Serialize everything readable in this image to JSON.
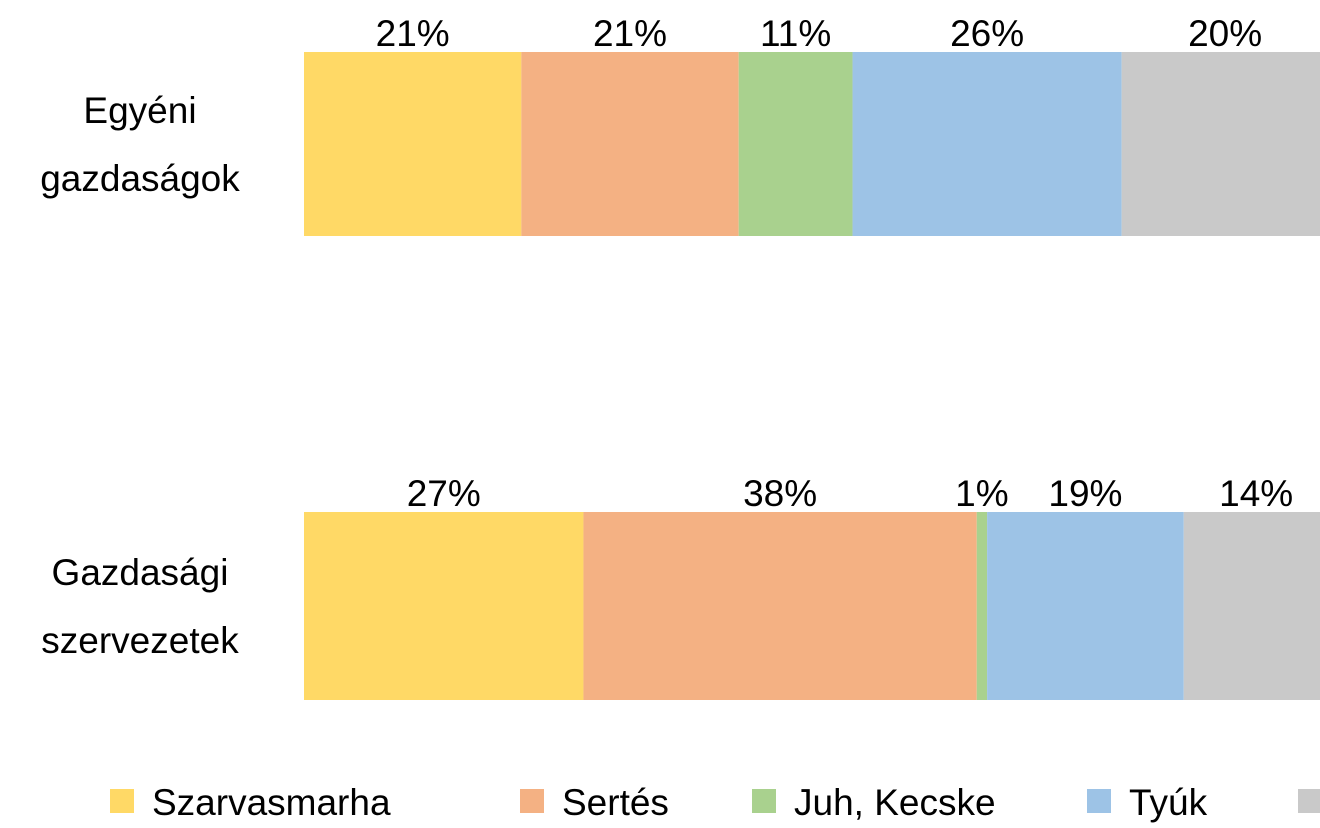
{
  "chart_data": {
    "type": "stacked-barh",
    "categories": [
      "Egyéni gazdaságok",
      "Gazdasági szervezetek"
    ],
    "series": [
      {
        "name": "Szarvasmarha",
        "color": "#ffd966",
        "values": [
          21,
          27
        ],
        "value_labels": [
          "21%",
          "27%"
        ]
      },
      {
        "name": "Sertés",
        "color": "#f4b183",
        "values": [
          21,
          38
        ],
        "value_labels": [
          "21%",
          "38%"
        ]
      },
      {
        "name": "Juh, Kecske",
        "color": "#a9d18e",
        "values": [
          11,
          1
        ],
        "value_labels": [
          "11%",
          "1%"
        ]
      },
      {
        "name": "Tyúk",
        "color": "#9dc3e6",
        "values": [
          26,
          19
        ],
        "value_labels": [
          "26%",
          "19%"
        ]
      },
      {
        "name": null,
        "color": "#c9c9c9",
        "values": [
          20,
          14
        ],
        "value_labels": [
          "20%",
          "14%"
        ]
      }
    ],
    "xlim": [
      0,
      100
    ],
    "legend": "bottom"
  }
}
